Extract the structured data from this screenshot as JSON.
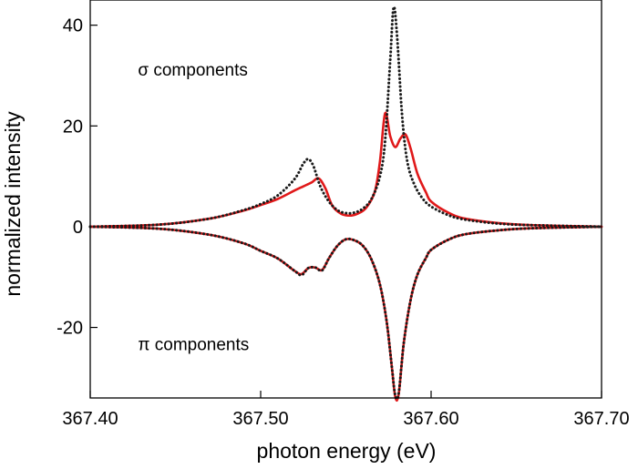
{
  "chart_data": {
    "type": "line",
    "xlabel": "photon energy (eV)",
    "ylabel": "normalized intensity",
    "xlim": [
      367.4,
      367.7
    ],
    "ylim": [
      -34,
      45
    ],
    "x_ticks": [
      367.4,
      367.5,
      367.6,
      367.7
    ],
    "x_tick_labels": [
      "367.40",
      "367.50",
      "367.60",
      "367.70"
    ],
    "y_ticks": [
      -20,
      0,
      20,
      40
    ],
    "y_tick_labels": [
      "-20",
      "0",
      "20",
      "40"
    ],
    "grid": false,
    "legend": "none",
    "annotations": [
      {
        "text": "σ components",
        "x": 367.428,
        "y": 30
      },
      {
        "text": "π components",
        "x": 367.428,
        "y": -24.5
      }
    ],
    "series": [
      {
        "group": "sigma",
        "style": "dotted",
        "color": "#1a1a1a",
        "x": [
          367.4,
          367.44,
          367.47,
          367.49,
          367.5,
          367.51,
          367.52,
          367.525,
          367.528,
          367.531,
          367.535,
          367.54,
          367.545,
          367.55,
          367.555,
          367.56,
          367.565,
          367.57,
          367.573,
          367.576,
          367.578,
          367.58,
          367.583,
          367.586,
          367.59,
          367.595,
          367.6,
          367.61,
          367.62,
          367.64,
          367.66,
          367.7
        ],
        "y": [
          0,
          0.4,
          1.6,
          3.3,
          4.5,
          6.2,
          9.5,
          12.5,
          13.4,
          12,
          8,
          5,
          3.3,
          2.7,
          2.8,
          3.6,
          5.5,
          10,
          17,
          33,
          43.5,
          38,
          22,
          13,
          8.5,
          5.6,
          4,
          2.3,
          1.4,
          0.6,
          0.3,
          0
        ]
      },
      {
        "group": "sigma",
        "style": "solid",
        "color": "#e0191a",
        "x": [
          367.4,
          367.44,
          367.47,
          367.49,
          367.5,
          367.51,
          367.52,
          367.525,
          367.53,
          367.534,
          367.538,
          367.542,
          367.547,
          367.552,
          367.557,
          367.562,
          367.567,
          367.57,
          367.573,
          367.576,
          367.579,
          367.582,
          367.585,
          367.588,
          367.592,
          367.597,
          367.6,
          367.61,
          367.62,
          367.64,
          367.66,
          367.7
        ],
        "y": [
          0,
          0.4,
          1.6,
          3.2,
          4.3,
          5.5,
          7.2,
          8,
          8.8,
          9.6,
          7.6,
          4.2,
          2.6,
          2.2,
          2.6,
          3.8,
          7,
          13,
          22.5,
          18,
          15.8,
          17.5,
          18.3,
          15.5,
          10.5,
          6.8,
          5,
          2.8,
          1.6,
          0.7,
          0.3,
          0
        ]
      },
      {
        "group": "pi",
        "style": "dotted",
        "color": "#1a1a1a",
        "x": [
          367.4,
          367.44,
          367.47,
          367.49,
          367.5,
          367.51,
          367.52,
          367.524,
          367.528,
          367.532,
          367.536,
          367.54,
          367.545,
          367.55,
          367.555,
          367.56,
          367.565,
          367.57,
          367.574,
          367.577,
          367.579,
          367.581,
          367.584,
          367.588,
          367.592,
          367.597,
          367.6,
          367.61,
          367.62,
          367.64,
          367.66,
          367.7
        ],
        "y": [
          0,
          -0.4,
          -1.6,
          -3.3,
          -4.8,
          -6.3,
          -8.8,
          -9.6,
          -8.2,
          -8.1,
          -8.7,
          -6.3,
          -3.8,
          -2.5,
          -2.7,
          -3.8,
          -6.5,
          -11.5,
          -19,
          -28,
          -33.5,
          -33,
          -23,
          -14.5,
          -9.5,
          -6.2,
          -4.6,
          -2.6,
          -1.5,
          -0.7,
          -0.3,
          0
        ]
      },
      {
        "group": "pi",
        "style": "solid",
        "color": "#e0191a",
        "x": [
          367.4,
          367.44,
          367.47,
          367.49,
          367.5,
          367.51,
          367.52,
          367.524,
          367.528,
          367.532,
          367.536,
          367.54,
          367.545,
          367.55,
          367.555,
          367.56,
          367.565,
          367.57,
          367.574,
          367.577,
          367.579,
          367.581,
          367.584,
          367.588,
          367.592,
          367.597,
          367.6,
          367.61,
          367.62,
          367.64,
          367.66,
          367.7
        ],
        "y": [
          0,
          -0.4,
          -1.6,
          -3.3,
          -4.8,
          -6.3,
          -8.8,
          -9.4,
          -8.2,
          -8.1,
          -8.6,
          -6.3,
          -3.8,
          -2.5,
          -2.7,
          -3.8,
          -6.5,
          -11.5,
          -19,
          -28,
          -33.8,
          -33.2,
          -23,
          -14.5,
          -9.5,
          -6.2,
          -4.6,
          -2.6,
          -1.5,
          -0.7,
          -0.3,
          0
        ]
      }
    ]
  }
}
